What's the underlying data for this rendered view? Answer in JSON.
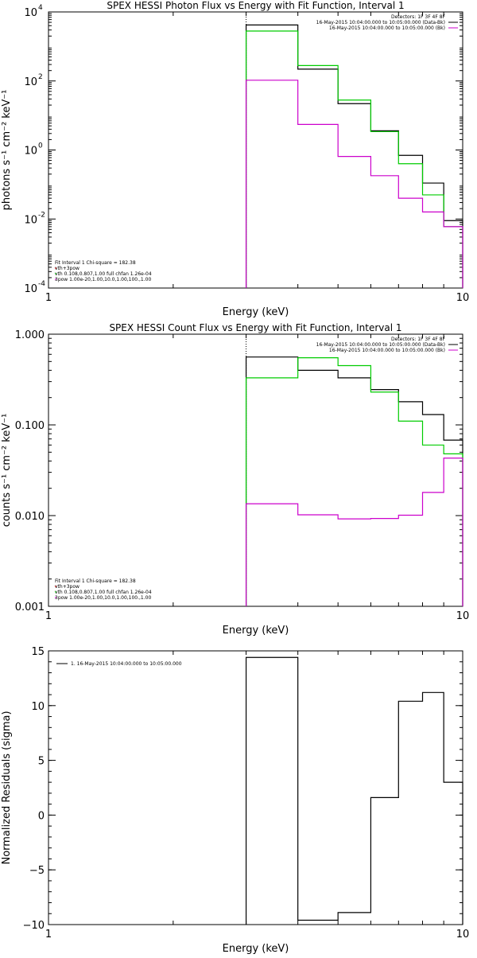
{
  "chart_data": [
    {
      "type": "line",
      "title": "SPEX HESSI Photon Flux vs Energy with Fit Function, Interval 1",
      "xlabel": "Energy (keV)",
      "ylabel": "photons s⁻¹ cm⁻² keV⁻¹",
      "xscale": "log",
      "yscale": "log",
      "xlim": [
        1,
        10
      ],
      "ylim": [
        0.0001,
        10000
      ],
      "xticks": [
        {
          "v": 1,
          "label": "1"
        },
        {
          "v": 10,
          "label": "10"
        }
      ],
      "yticks": [
        {
          "v": 0.0001,
          "base": "10",
          "exp": "-4"
        },
        {
          "v": 0.01,
          "base": "10",
          "exp": "-2"
        },
        {
          "v": 1,
          "base": "10",
          "exp": "0"
        },
        {
          "v": 100,
          "base": "10",
          "exp": "2"
        },
        {
          "v": 10000,
          "base": "10",
          "exp": "4"
        }
      ],
      "x_edges": [
        3,
        4,
        5,
        6,
        7,
        8,
        9,
        10
      ],
      "vline_x": 3,
      "series": [
        {
          "name": "data",
          "color": "#000000",
          "values": [
            4200,
            220,
            22,
            3.6,
            0.7,
            0.11,
            0.009
          ]
        },
        {
          "name": "vth",
          "color": "#00cc00",
          "values": [
            2800,
            280,
            28,
            3.4,
            0.4,
            0.05,
            0.006
          ]
        },
        {
          "name": "3pow",
          "color": "#cc00cc",
          "values": [
            105,
            5.5,
            0.65,
            0.18,
            0.04,
            0.016,
            0.006
          ]
        }
      ],
      "header": [
        "Detectors: 1F 3F 4F 8F",
        "16-May-2015 10:04:00.000 to 10:05:00.000 (Data-Bk)",
        "16-May-2015 10:04:00.000 to 10:05:00.000 (Bk)"
      ],
      "header_colors": [
        "#000000",
        "#000000",
        "#cc00cc"
      ],
      "legend": [
        {
          "text": "Fit Interval 1    Chi-square = 182.38",
          "color": "#000000"
        },
        {
          "text": "vth+3pow",
          "color": "#cc0000"
        },
        {
          "text": "vth 0.108,0.807,1.00  full chfan 1.26e-04",
          "color": "#00cc00"
        },
        {
          "text": "3pow 1.00e-20,1.00,10.0,1.00,100.,1.00",
          "color": "#cc00cc"
        }
      ]
    },
    {
      "type": "line",
      "title": "SPEX HESSI Count Flux vs Energy with Fit Function, Interval 1",
      "xlabel": "Energy (keV)",
      "ylabel": "counts s⁻¹ cm⁻² keV⁻¹",
      "xscale": "log",
      "yscale": "log",
      "xlim": [
        1,
        10
      ],
      "ylim": [
        0.001,
        1.0
      ],
      "xticks": [
        {
          "v": 1,
          "label": "1"
        },
        {
          "v": 10,
          "label": "10"
        }
      ],
      "yticks": [
        {
          "v": 0.001,
          "label": "0.001"
        },
        {
          "v": 0.01,
          "label": "0.010"
        },
        {
          "v": 0.1,
          "label": "0.100"
        },
        {
          "v": 1.0,
          "label": "1.000"
        }
      ],
      "x_edges": [
        3,
        4,
        5,
        6,
        7,
        8,
        9,
        10
      ],
      "vline_x": 3,
      "series": [
        {
          "name": "data",
          "color": "#000000",
          "values": [
            0.56,
            0.4,
            0.33,
            0.245,
            0.18,
            0.13,
            0.068
          ]
        },
        {
          "name": "vth",
          "color": "#00cc00",
          "values": [
            0.33,
            0.55,
            0.45,
            0.23,
            0.11,
            0.06,
            0.048
          ]
        },
        {
          "name": "3pow",
          "color": "#cc00cc",
          "values": [
            0.0135,
            0.0102,
            0.0092,
            0.0093,
            0.0101,
            0.018,
            0.043
          ]
        }
      ],
      "header": [
        "Detectors: 1F 3F 4F 8F",
        "16-May-2015 10:04:00.000 to 10:05:00.000 (Data-Bk)",
        "16-May-2015 10:04:00.000 to 10:05:00.000 (Bk)"
      ],
      "header_colors": [
        "#000000",
        "#000000",
        "#cc00cc"
      ],
      "legend": [
        {
          "text": "Fit Interval 1    Chi-square = 182.38",
          "color": "#000000"
        },
        {
          "text": "vth+3pow",
          "color": "#cc0000"
        },
        {
          "text": "vth 0.108,0.807,1.00  full chfan 1.26e-04",
          "color": "#00cc00"
        },
        {
          "text": "3pow 1.00e-20,1.00,10.0,1.00,100.,1.00",
          "color": "#cc00cc"
        }
      ]
    },
    {
      "type": "line",
      "title": "",
      "xlabel": "Energy (keV)",
      "ylabel": "Normalized Residuals (sigma)",
      "xscale": "log",
      "yscale": "linear",
      "xlim": [
        1,
        10
      ],
      "ylim": [
        -10,
        15
      ],
      "xticks": [
        {
          "v": 1,
          "label": "1"
        },
        {
          "v": 10,
          "label": "10"
        }
      ],
      "yticks": [
        {
          "v": -10,
          "label": "−10"
        },
        {
          "v": -5,
          "label": "−5"
        },
        {
          "v": 0,
          "label": "0"
        },
        {
          "v": 5,
          "label": "5"
        },
        {
          "v": 10,
          "label": "10"
        },
        {
          "v": 15,
          "label": "15"
        }
      ],
      "x_edges": [
        3,
        4,
        5,
        6,
        7,
        8,
        9,
        10
      ],
      "series": [
        {
          "name": "1. 16-May-2015 10:04:00.000 to 10:05:00.000",
          "color": "#000000",
          "values": [
            14.4,
            -9.6,
            -8.9,
            1.6,
            10.4,
            11.2,
            3.0
          ]
        }
      ],
      "legend": [
        {
          "text": "1. 16-May-2015 10:04:00.000 to 10:05:00.000",
          "color": "#000000",
          "line": true
        }
      ]
    }
  ]
}
